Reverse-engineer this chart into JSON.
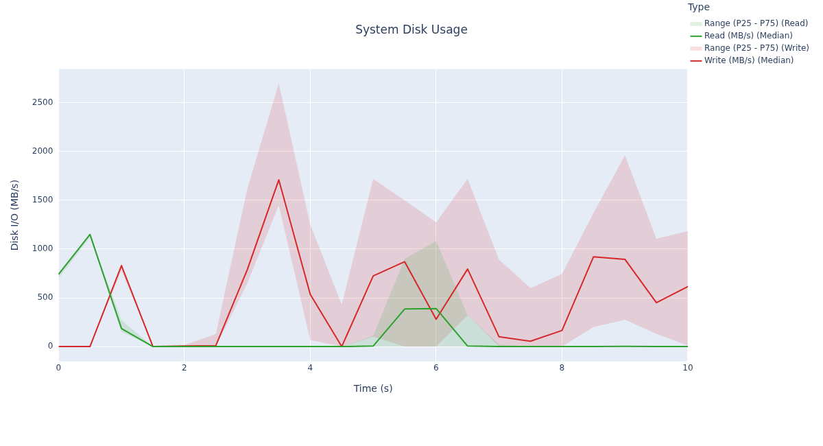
{
  "chart_data": {
    "type": "line",
    "title": "System Disk Usage",
    "xlabel": "Time (s)",
    "ylabel": "Disk I/O (MB/s)",
    "legend_title": "Type",
    "legend": "right",
    "grid": true,
    "marker": "none",
    "line_style": "solid",
    "annotations": [
      "Range (P25 - P75) (Read)",
      "Range (P25 - P75) (Write)"
    ],
    "x": [
      0,
      0.5,
      1,
      1.5,
      2,
      2.5,
      3,
      3.5,
      4,
      4.5,
      5,
      5.5,
      6,
      6.5,
      7,
      7.5,
      8,
      8.5,
      9,
      9.5,
      10
    ],
    "xlim": [
      0,
      10
    ],
    "xticks": [
      0,
      2,
      4,
      6,
      8,
      10
    ],
    "ylim": [
      -153,
      2848
    ],
    "yticks": [
      0,
      500,
      1000,
      1500,
      2000,
      2500
    ],
    "series": [
      {
        "name": "Read (MB/s) (Median)",
        "type": "line",
        "color": "#2ca02c",
        "values": [
          740,
          1150,
          185,
          0,
          0,
          0,
          0,
          0,
          0,
          0,
          5,
          385,
          390,
          5,
          0,
          0,
          0,
          0,
          3,
          0,
          0
        ],
        "lower": [
          700,
          1120,
          150,
          0,
          0,
          0,
          0,
          0,
          0,
          0,
          0,
          0,
          0,
          0,
          0,
          0,
          0,
          0,
          0,
          0,
          0
        ],
        "upper": [
          760,
          1150,
          270,
          0,
          0,
          0,
          0,
          0,
          0,
          0,
          110,
          900,
          1085,
          320,
          20,
          0,
          0,
          0,
          0,
          0,
          0
        ]
      },
      {
        "name": "Write (MB/s) (Median)",
        "type": "line",
        "color": "#d62728",
        "values": [
          0,
          0,
          830,
          0,
          5,
          10,
          790,
          1710,
          535,
          0,
          725,
          870,
          280,
          795,
          100,
          55,
          165,
          920,
          895,
          450,
          615
        ],
        "lower": [
          0,
          0,
          780,
          0,
          0,
          0,
          650,
          1450,
          65,
          0,
          100,
          0,
          0,
          320,
          0,
          0,
          0,
          200,
          275,
          130,
          10
        ],
        "upper": [
          0,
          0,
          850,
          0,
          15,
          130,
          1620,
          2700,
          1250,
          430,
          1720,
          1500,
          1275,
          1720,
          890,
          600,
          745,
          1370,
          1960,
          1105,
          1185
        ]
      }
    ]
  }
}
